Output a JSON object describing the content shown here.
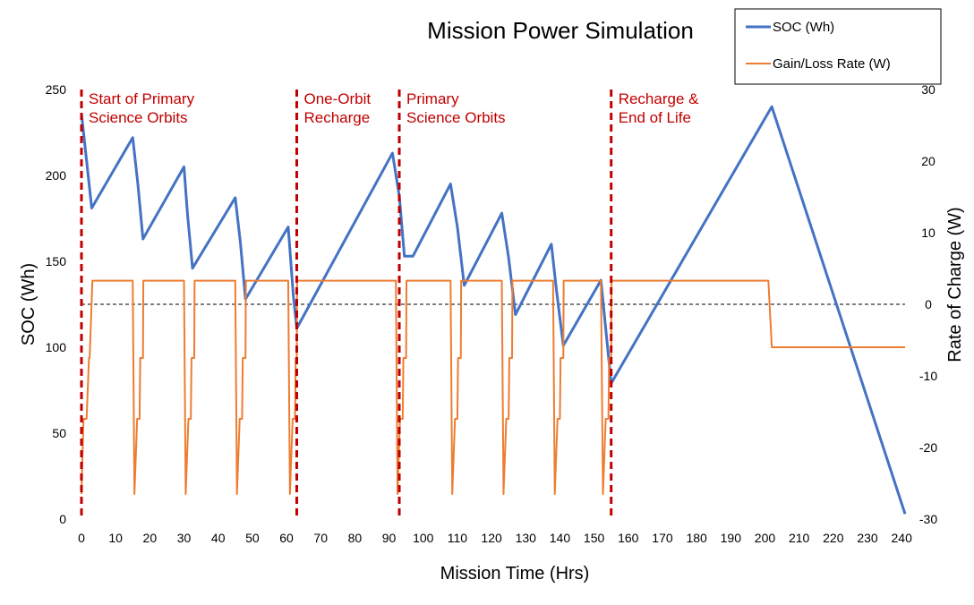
{
  "chart_data": {
    "type": "line",
    "title": "Mission Power Simulation",
    "xlabel": "Mission Time (Hrs)",
    "ylabel": "SOC (Wh)",
    "y2label": "Rate of Charge (W)",
    "xlim": [
      0,
      241
    ],
    "ylim": [
      0,
      250
    ],
    "y2lim": [
      -30,
      30
    ],
    "xticks": [
      0,
      10,
      20,
      30,
      40,
      50,
      60,
      70,
      80,
      90,
      100,
      110,
      120,
      130,
      140,
      150,
      160,
      170,
      180,
      190,
      200,
      210,
      220,
      230,
      240
    ],
    "yticks": [
      0,
      50,
      100,
      150,
      200,
      250
    ],
    "y2ticks": [
      -30,
      -20,
      -10,
      0,
      10,
      20,
      30
    ],
    "legend_position": "top-right",
    "colors": {
      "soc": "#4472C4",
      "rate": "#ED7D31",
      "phase": "#C00000",
      "zero": "#000000"
    },
    "series": [
      {
        "name": "SOC (Wh)",
        "axis": "left",
        "x": [
          0,
          3,
          15,
          16.5,
          18,
          30,
          31,
          32.5,
          45,
          46.5,
          48,
          60.5,
          62,
          63,
          91,
          93,
          94.5,
          97,
          108,
          110,
          112,
          123,
          125,
          127,
          137.5,
          139,
          141,
          152,
          155,
          202,
          241
        ],
        "y": [
          236,
          181,
          222,
          195,
          163,
          205,
          178,
          146,
          187,
          161,
          128,
          170,
          130,
          111,
          213,
          188,
          153,
          153,
          195,
          170,
          136,
          178,
          152,
          119,
          160,
          133,
          101,
          139,
          79,
          240,
          3
        ]
      },
      {
        "name": "Gain/Loss Rate (W)",
        "axis": "right",
        "x": [
          0,
          0.6,
          1.5,
          2.2,
          2.4,
          3.2,
          3.3,
          15,
          15.5,
          16.3,
          17,
          17.2,
          18,
          18.1,
          30,
          30.5,
          31.3,
          32,
          32.2,
          33,
          33.1,
          45,
          45.5,
          46.3,
          47,
          47.2,
          48,
          48.1,
          60.5,
          61,
          61.8,
          62.5,
          62.7,
          63,
          63.1,
          92,
          92.5,
          93.2,
          94,
          94.2,
          95,
          95.1,
          108,
          108.5,
          109.3,
          110,
          110.2,
          111,
          111.1,
          123,
          123.5,
          124.3,
          125,
          125.2,
          126,
          126.1,
          138,
          138.5,
          139.3,
          140,
          140.2,
          141,
          141.1,
          152,
          152.6,
          153.4,
          154.2,
          154.4,
          155,
          155.1,
          201,
          202,
          241
        ],
        "y": [
          -26.5,
          -16,
          -16,
          -7.5,
          -7.5,
          3.3,
          3.3,
          3.3,
          -26.5,
          -16,
          -16,
          -7.5,
          -7.5,
          3.3,
          3.3,
          -26.5,
          -16,
          -16,
          -7.5,
          -7.5,
          3.3,
          3.3,
          -26.5,
          -16,
          -16,
          -7.5,
          -7.5,
          3.3,
          3.3,
          -26.5,
          -16,
          -16,
          -7.5,
          -7.5,
          3.3,
          3.3,
          -26.5,
          -16,
          -16,
          -7.5,
          -7.5,
          3.3,
          3.3,
          -26.5,
          -16,
          -16,
          -7.5,
          -7.5,
          3.3,
          3.3,
          -26.5,
          -16,
          -16,
          -7.5,
          -7.5,
          3.3,
          3.3,
          -26.5,
          -16,
          -16,
          -7.5,
          -7.5,
          3.3,
          3.3,
          -26.5,
          -16,
          -16,
          -7.5,
          -7.5,
          3.3,
          3.3,
          -6,
          -6
        ]
      }
    ],
    "phase_markers": [
      {
        "x": 0,
        "lines": [
          "Start of Primary",
          "Science Orbits"
        ]
      },
      {
        "x": 63,
        "lines": [
          "One-Orbit",
          "Recharge"
        ]
      },
      {
        "x": 93,
        "lines": [
          "Primary",
          "Science Orbits"
        ]
      },
      {
        "x": 155,
        "lines": [
          "Recharge &",
          "End of Life"
        ]
      }
    ],
    "zero_line_y2": 0
  }
}
